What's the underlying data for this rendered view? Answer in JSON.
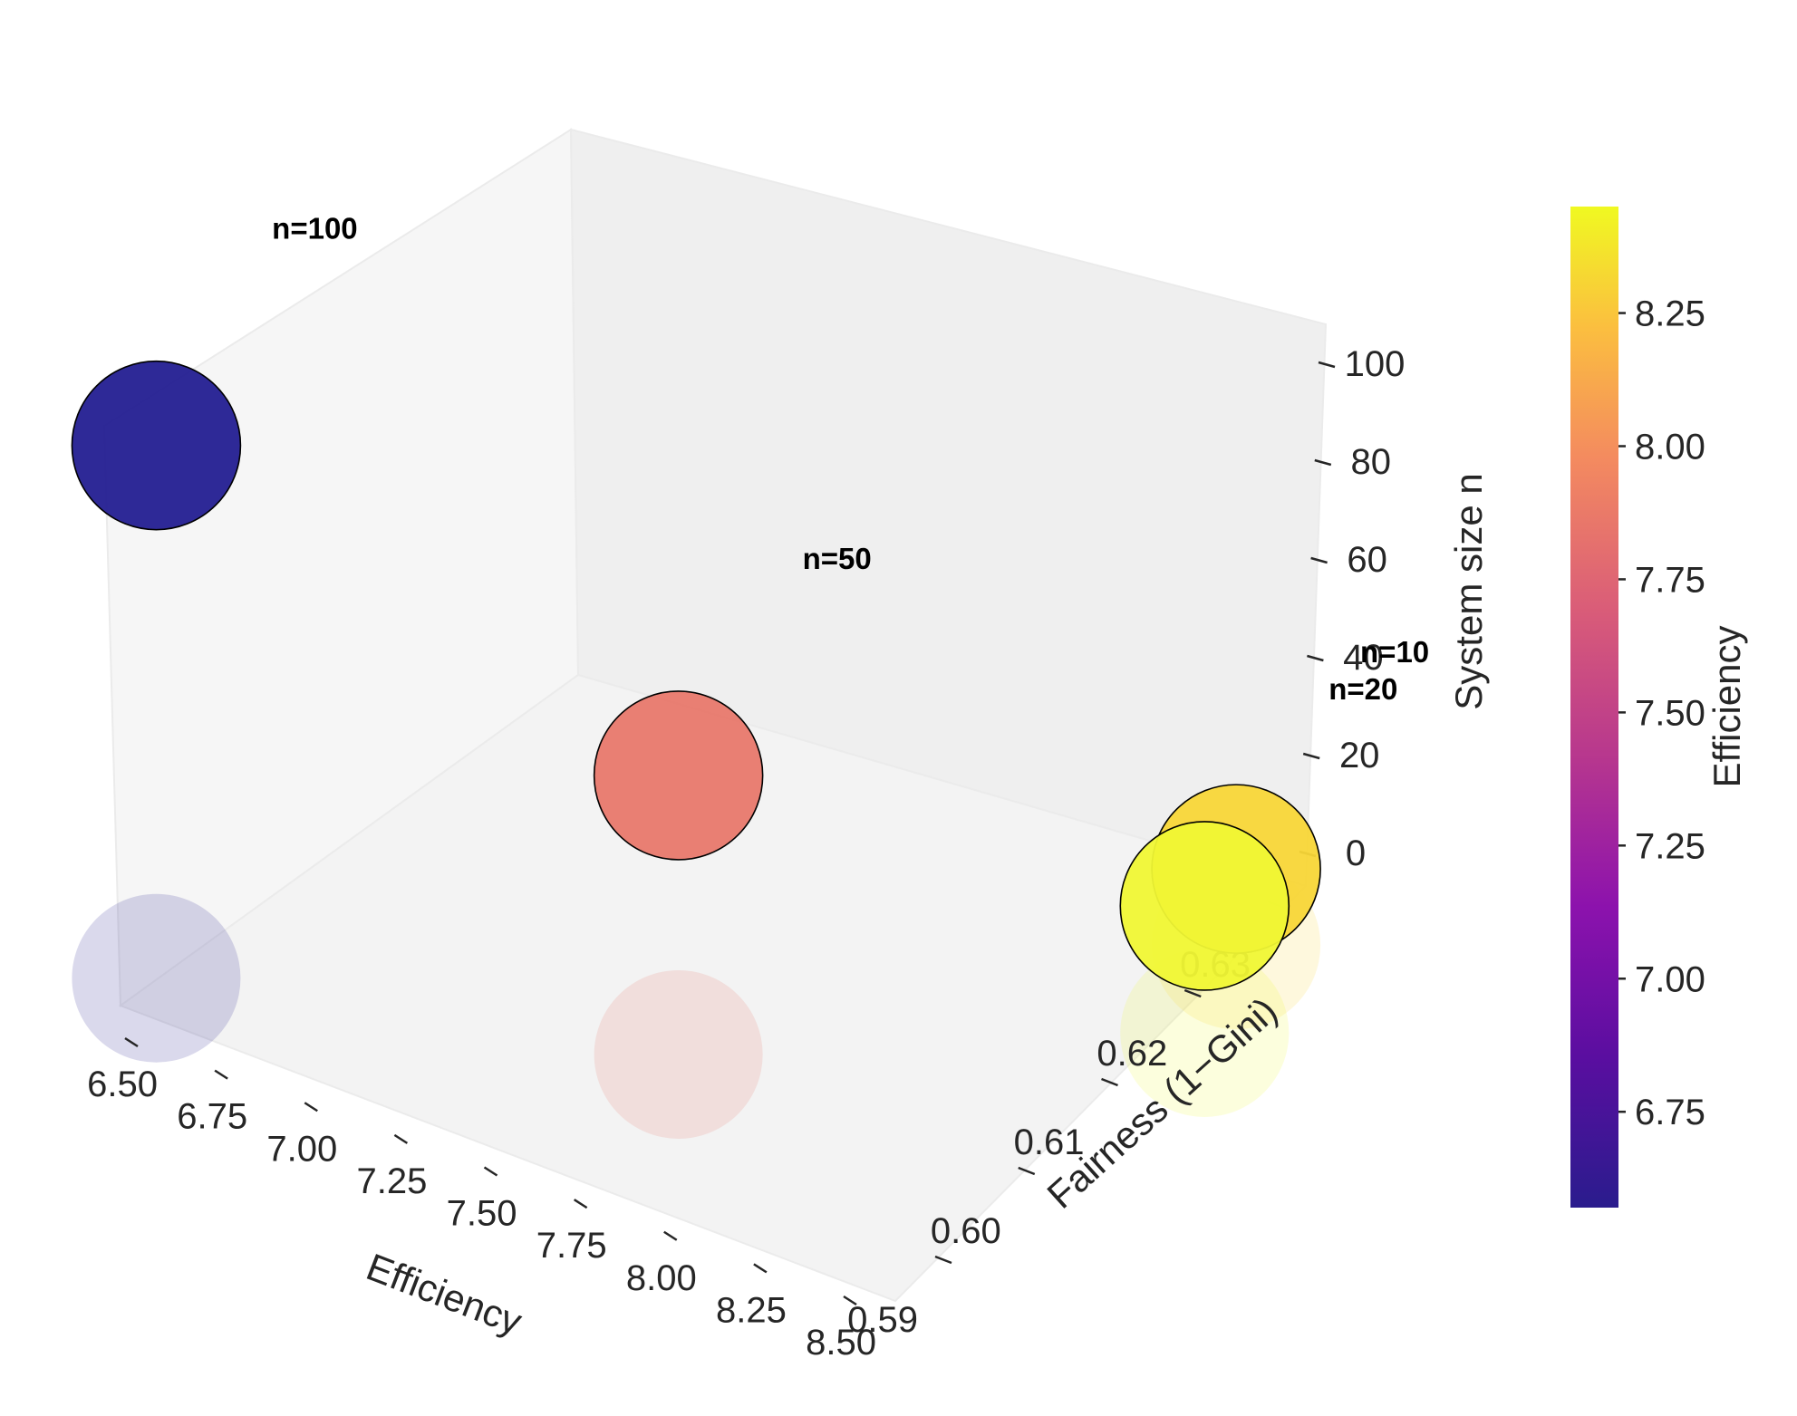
{
  "chart_data": {
    "type": "scatter3d",
    "title": "",
    "xlabel": "Efficiency",
    "ylabel": "Fairness (1−Gini)",
    "zlabel": "System size n",
    "xlim": [
      6.5,
      8.5
    ],
    "ylim": [
      0.585,
      0.635
    ],
    "zlim": [
      -5,
      105
    ],
    "xticks": [
      "6.50",
      "6.75",
      "7.00",
      "7.25",
      "7.50",
      "7.75",
      "8.00",
      "8.25",
      "8.50"
    ],
    "yticks": [
      "0.59",
      "0.60",
      "0.61",
      "0.62",
      "0.63"
    ],
    "zticks": [
      "0",
      "20",
      "40",
      "60",
      "80",
      "100"
    ],
    "colorbar": {
      "label": "Efficiency",
      "ticks": [
        "6.75",
        "7.00",
        "7.25",
        "7.50",
        "7.75",
        "8.00",
        "8.25"
      ],
      "range": [
        6.57,
        8.45
      ],
      "colormap": "plasma"
    },
    "points": [
      {
        "label": "n=100",
        "n": 100,
        "efficiency": 6.57,
        "fairness": 0.588,
        "color": "#231d91"
      },
      {
        "label": "n=50",
        "n": 50,
        "efficiency": 7.62,
        "fairness": 0.6,
        "color": "#e8786c"
      },
      {
        "label": "n=20",
        "n": 20,
        "efficiency": 8.45,
        "fairness": 0.622,
        "color": "#f0f734"
      },
      {
        "label": "n=10",
        "n": 10,
        "efficiency": 8.3,
        "fairness": 0.632,
        "color": "#f8d637"
      }
    ],
    "projection_shadows": true
  }
}
